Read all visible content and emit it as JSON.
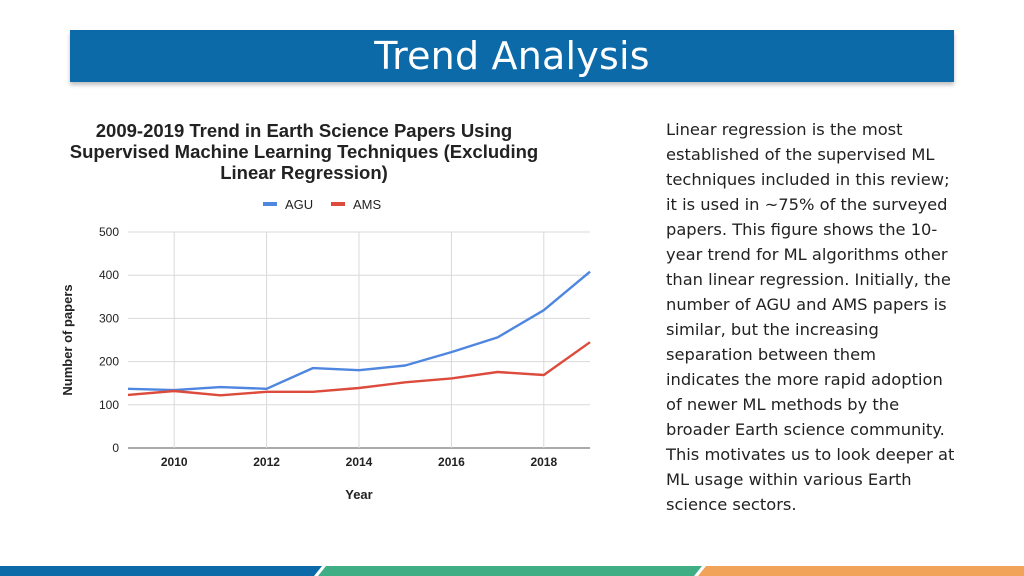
{
  "slide": {
    "title": "Trend Analysis",
    "body": "Linear regression is the most\nestablished of the supervised ML\ntechniques included in this review;\nit is used in ~75% of the surveyed\npapers. This figure shows the 10-\nyear trend for ML algorithms other\nthan linear regression. Initially, the\nnumber of AGU and AMS papers is\nsimilar, but the increasing\nseparation between them\nindicates the more rapid adoption\nof newer ML methods by the\nbroader Earth science community.\nThis motivates us to look deeper at\nML usage within various Earth\nscience sectors."
  },
  "colors": {
    "title_bar": "#0d6aa8",
    "agu": "#4f86df",
    "ams": "#dc4b3c",
    "footer_blue": "#0d6aa8",
    "footer_green": "#3fae84",
    "footer_orange": "#f2a35a"
  },
  "chart_data": {
    "type": "line",
    "title": [
      "2009-2019 Trend in Earth Science Papers Using",
      "Supervised Machine Learning Techniques (Excluding",
      "Linear Regression)"
    ],
    "xlabel": "Year",
    "ylabel": "Number of papers",
    "x": [
      2009,
      2010,
      2011,
      2012,
      2013,
      2014,
      2015,
      2016,
      2017,
      2018,
      2019
    ],
    "xlim": [
      2009,
      2019
    ],
    "xticks": [
      2010,
      2012,
      2014,
      2016,
      2018
    ],
    "ylim": [
      0,
      500
    ],
    "yticks": [
      0,
      100,
      200,
      300,
      400,
      500
    ],
    "grid": true,
    "legend": "top-center",
    "series": [
      {
        "name": "AGU",
        "color": "#4f86df",
        "values": [
          137,
          134,
          141,
          137,
          185,
          180,
          191,
          222,
          256,
          319,
          408
        ]
      },
      {
        "name": "AMS",
        "color": "#dc4b3c",
        "values": [
          123,
          132,
          122,
          130,
          130,
          139,
          152,
          161,
          176,
          169,
          245
        ]
      }
    ]
  }
}
